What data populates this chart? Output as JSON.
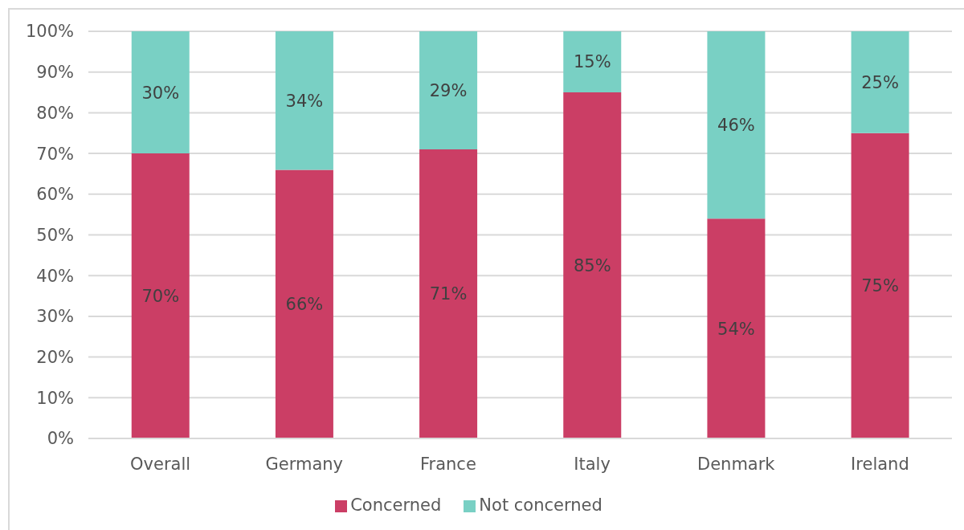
{
  "chart_data": {
    "type": "bar",
    "stacked": true,
    "categories": [
      "Overall",
      "Germany",
      "France",
      "Italy",
      "Denmark",
      "Ireland"
    ],
    "series": [
      {
        "name": "Concerned",
        "color": "#cb3e65",
        "values": [
          70,
          66,
          71,
          85,
          54,
          75
        ],
        "value_labels": [
          "70%",
          "66%",
          "71%",
          "85%",
          "54%",
          "75%"
        ]
      },
      {
        "name": "Not concerned",
        "color": "#79d0c4",
        "values": [
          30,
          34,
          29,
          15,
          46,
          25
        ],
        "value_labels": [
          "30%",
          "34%",
          "29%",
          "15%",
          "46%",
          "25%"
        ]
      }
    ],
    "ylim": [
      0,
      100
    ],
    "yticks": [
      {
        "value": 0,
        "label": "0%"
      },
      {
        "value": 10,
        "label": "10%"
      },
      {
        "value": 20,
        "label": "20%"
      },
      {
        "value": 30,
        "label": "30%"
      },
      {
        "value": 40,
        "label": "40%"
      },
      {
        "value": 50,
        "label": "50%"
      },
      {
        "value": 60,
        "label": "60%"
      },
      {
        "value": 70,
        "label": "70%"
      },
      {
        "value": 80,
        "label": "80%"
      },
      {
        "value": 90,
        "label": "90%"
      },
      {
        "value": 100,
        "label": "100%"
      }
    ],
    "grid": "y",
    "legend": "bottom"
  }
}
